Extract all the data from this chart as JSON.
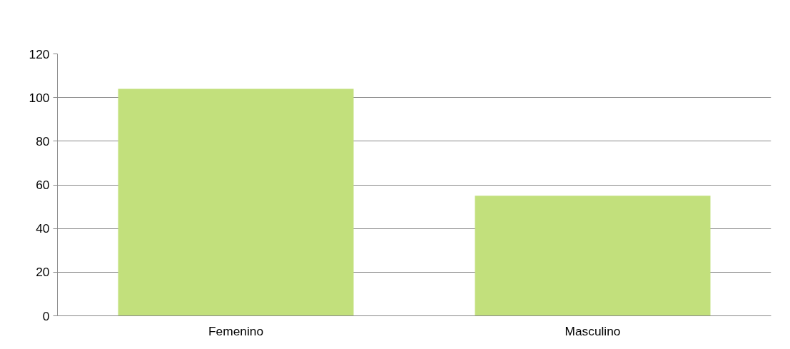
{
  "chart_data": {
    "type": "bar",
    "categories": [
      "Femenino",
      "Masculino"
    ],
    "values": [
      104,
      55
    ],
    "color": "#c2e07c",
    "ylim": [
      0,
      120
    ],
    "yticks": [
      0,
      20,
      40,
      60,
      80,
      100,
      120
    ],
    "grid": "y"
  }
}
